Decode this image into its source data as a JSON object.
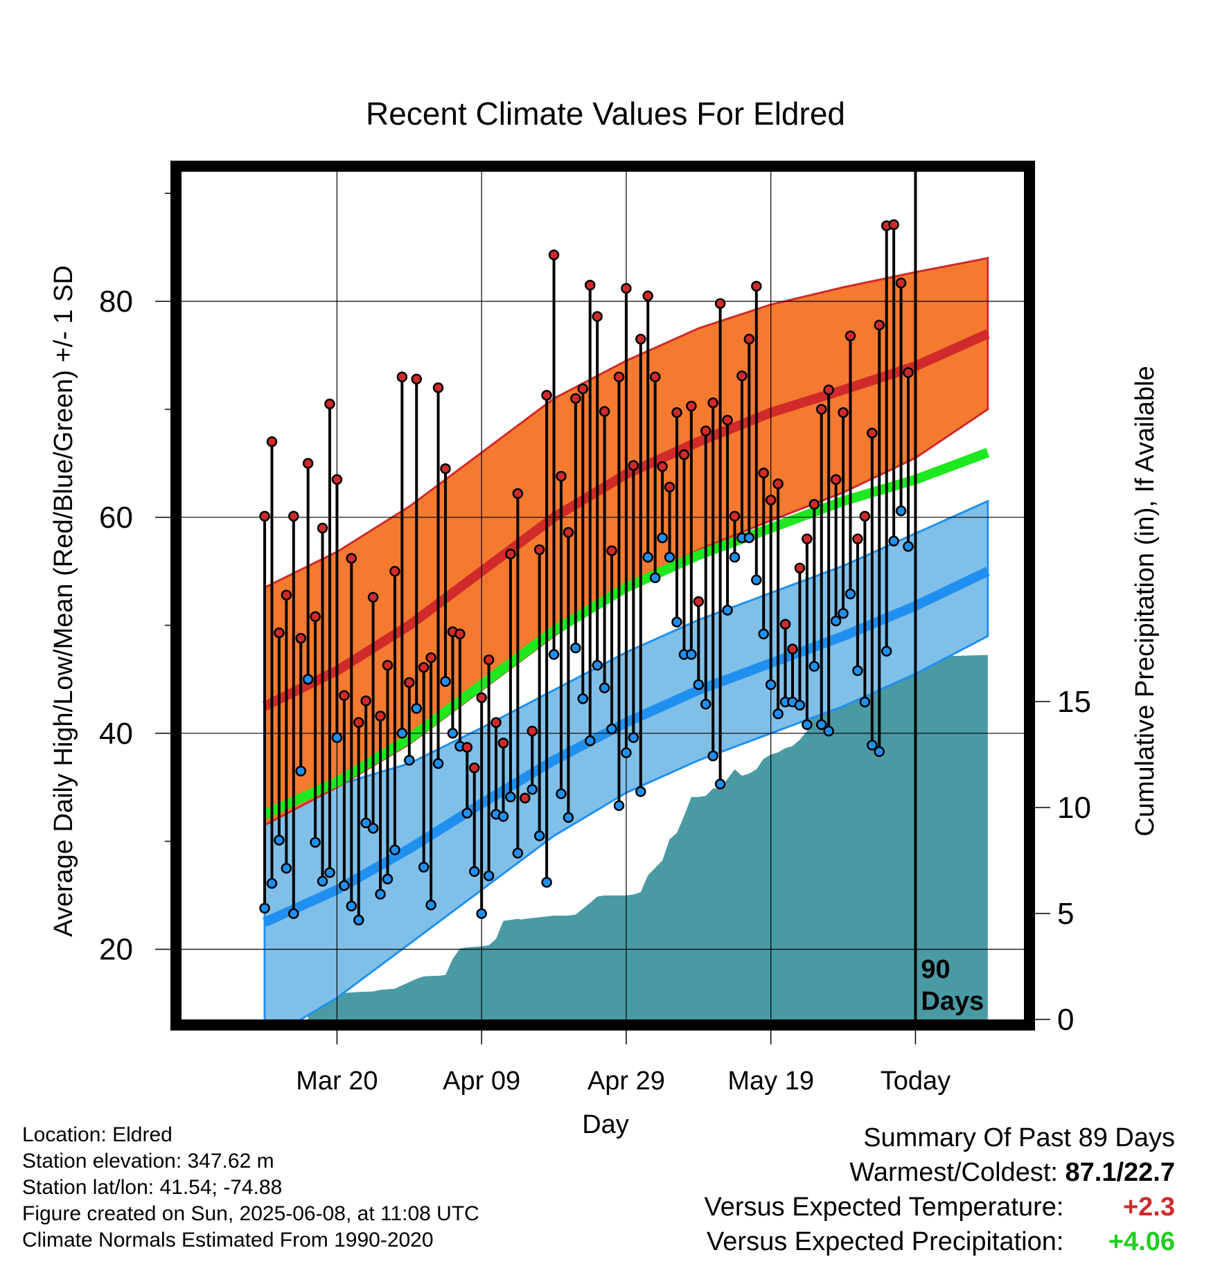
{
  "chart_data": {
    "type": "line",
    "title": "Recent Climate Values For Eldred",
    "xlabel": "Day",
    "ylabel": "Average Daily High/Low/Mean (Red/Blue/Green) +/- 1 SD",
    "y2label": "Cumulative Precipitation (in), If Available",
    "ylim": [
      13.5,
      92
    ],
    "y2lim": [
      0,
      40
    ],
    "yticks": [
      20,
      40,
      60,
      80
    ],
    "y2ticks": [
      0,
      5,
      10,
      15
    ],
    "xticks": [
      {
        "day": 10,
        "label": "Mar 20"
      },
      {
        "day": 30,
        "label": "Apr 09"
      },
      {
        "day": 50,
        "label": "Apr 29"
      },
      {
        "day": 70,
        "label": "May 19"
      },
      {
        "day": 90,
        "label": "Today"
      }
    ],
    "today_marker": {
      "day": 90,
      "label_line1": "90",
      "label_line2": "Days"
    },
    "grid": true,
    "colors": {
      "high_band": "#f47a30",
      "high_mean": "#d02a2a",
      "low_band": "#80c0e8",
      "low_mean": "#2090f0",
      "mean_line": "#1ee81e",
      "precip": "#4a9aa4",
      "stem": "#000000",
      "high_dot": "#d02a2a",
      "low_dot": "#2090f0"
    },
    "normal_high": {
      "day": [
        0,
        10,
        20,
        30,
        40,
        50,
        60,
        70,
        80,
        90,
        100
      ],
      "mean": [
        42.5,
        45.8,
        50,
        55,
        60,
        64,
        67,
        69.7,
        71.8,
        74,
        77
      ],
      "plus": [
        53.5,
        56.8,
        61,
        66,
        71,
        74.5,
        77.5,
        79.7,
        81.3,
        82.7,
        84
      ],
      "minus": [
        31.5,
        35,
        39,
        44,
        49,
        53.5,
        57,
        59.7,
        62.3,
        65.5,
        70
      ]
    },
    "normal_mean": {
      "day": [
        0,
        10,
        20,
        30,
        40,
        50,
        60,
        70,
        80,
        90,
        100
      ],
      "value": [
        32.5,
        35.5,
        39.5,
        44.5,
        49.5,
        53.5,
        56.5,
        59,
        61.5,
        63.5,
        66
      ]
    },
    "normal_low": {
      "day": [
        0,
        10,
        20,
        30,
        40,
        50,
        60,
        70,
        80,
        90,
        100
      ],
      "mean": [
        22.5,
        25.5,
        29.3,
        33.5,
        37.5,
        41,
        44,
        46.5,
        49,
        51.8,
        55
      ],
      "plus": [
        33.5,
        35.2,
        37.2,
        40.5,
        44,
        47.5,
        50.5,
        53,
        55.5,
        58.5,
        61.5
      ],
      "minus": [
        11.5,
        15.5,
        20.5,
        25.5,
        30.5,
        34.5,
        37.5,
        40,
        42.5,
        45.5,
        49
      ]
    },
    "precip_cumulative": {
      "day": [
        6,
        6.5,
        7.5,
        9,
        10,
        11,
        13,
        15,
        16,
        17,
        18,
        21,
        22,
        23,
        24,
        25,
        26,
        27,
        28,
        30,
        31,
        32,
        33,
        35,
        35.5,
        36,
        40,
        42,
        43,
        45,
        46,
        47,
        48,
        50,
        51,
        52,
        53,
        55,
        56,
        57,
        58,
        59,
        60,
        61,
        62,
        63,
        64,
        65,
        66,
        67,
        68,
        69,
        70,
        71,
        72,
        73,
        74,
        75,
        76,
        77,
        78,
        79,
        80,
        81,
        82,
        83,
        84,
        85,
        86,
        87,
        88,
        89,
        90,
        100
      ],
      "value": [
        0.7,
        0.9,
        1.0,
        1.0,
        1.2,
        1.25,
        1.3,
        1.32,
        1.4,
        1.42,
        1.45,
        1.92,
        2.03,
        2.05,
        2.06,
        2.1,
        2.85,
        3.35,
        3.4,
        3.45,
        3.5,
        3.8,
        4.65,
        4.75,
        4.72,
        4.75,
        4.9,
        4.9,
        4.95,
        5.5,
        5.8,
        5.85,
        5.85,
        5.85,
        5.9,
        6,
        6.8,
        7.5,
        8.5,
        8.8,
        9.6,
        10.5,
        10.5,
        10.55,
        10.9,
        10.9,
        11.35,
        11.8,
        11.5,
        11.6,
        11.8,
        12.3,
        12.5,
        12.6,
        12.8,
        12.9,
        13.2,
        13.6,
        14.8,
        15.4,
        15.5,
        15.5,
        15.5,
        15.5,
        15.6,
        16.6,
        16.8,
        17.0,
        17.1,
        17.2,
        17.1,
        17.2,
        17.1,
        17.2
      ],
      "max_day": 90
    },
    "daily_high": [
      60.1,
      67,
      49.3,
      52.8,
      60.1,
      48.8,
      65,
      50.8,
      59,
      70.5,
      63.5,
      43.5,
      56.2,
      41,
      43,
      52.6,
      41.6,
      46.3,
      55,
      73,
      44.7,
      72.8,
      46.1,
      47,
      72,
      64.5,
      49.4,
      49.2,
      38.7,
      36.8,
      43.3,
      46.8,
      41,
      39.1,
      56.6,
      62.2,
      34,
      40.2,
      57,
      71.3,
      84.3,
      63.8,
      58.6,
      71,
      71.9,
      81.5,
      78.6,
      69.8,
      56.9,
      73,
      81.2,
      64.8,
      76.5,
      80.5,
      73,
      64.7,
      62.8,
      69.7,
      65.8,
      70.3,
      52.2,
      68,
      70.6,
      79.8,
      69,
      60.1,
      73.1,
      76.5,
      81.4,
      64.1,
      61.6,
      63.1,
      50.1,
      47.8,
      55.3,
      58,
      61.2,
      70,
      71.8,
      63.5,
      69.7,
      76.8,
      58,
      60.1,
      67.8,
      77.8,
      87,
      87.1,
      81.7,
      73.4
    ],
    "daily_low": [
      23.8,
      26.1,
      30.1,
      27.5,
      23.3,
      36.5,
      45,
      29.9,
      26.3,
      27.1,
      39.6,
      25.9,
      24,
      22.7,
      31.7,
      31.2,
      25.1,
      26.5,
      29.2,
      40,
      37.5,
      42.3,
      27.6,
      24.1,
      37.2,
      44.8,
      40,
      38.8,
      32.6,
      27.2,
      23.3,
      26.8,
      32.5,
      32.3,
      34.1,
      28.9,
      null,
      34.8,
      30.5,
      26.2,
      47.3,
      34.4,
      32.2,
      47.9,
      43.2,
      39.3,
      46.3,
      44.2,
      40.4,
      33.3,
      38.2,
      39.6,
      34.6,
      56.3,
      54.4,
      58.1,
      56.3,
      50.3,
      47.3,
      47.3,
      44.5,
      42.7,
      37.9,
      35.3,
      51.4,
      56.3,
      58.1,
      58.1,
      54.2,
      49.2,
      44.5,
      41.8,
      42.9,
      42.9,
      42.6,
      40.8,
      46.2,
      40.8,
      40.2,
      50.4,
      51.1,
      52.9,
      45.8,
      42.9,
      38.9,
      38.3,
      47.6,
      57.8,
      60.6,
      57.3
    ]
  },
  "footer": {
    "location": "Location: Eldred",
    "elevation": "Station elevation: 347.62 m",
    "latlon": "Station lat/lon: 41.54; -74.88",
    "created": "Figure created on Sun, 2025-06-08, at 11:08 UTC",
    "normals": "Climate Normals Estimated From 1990-2020"
  },
  "summary": {
    "heading": "Summary Of Past 89 Days",
    "warm_cold_label": "Warmest/Coldest:",
    "warm_cold_value": "87.1/22.7",
    "temp_label": "Versus Expected Temperature:",
    "temp_value": "+2.3",
    "temp_color": "#d02a2a",
    "precip_label": "Versus Expected Precipitation:",
    "precip_value": "+4.06",
    "precip_color": "#22cc22"
  }
}
